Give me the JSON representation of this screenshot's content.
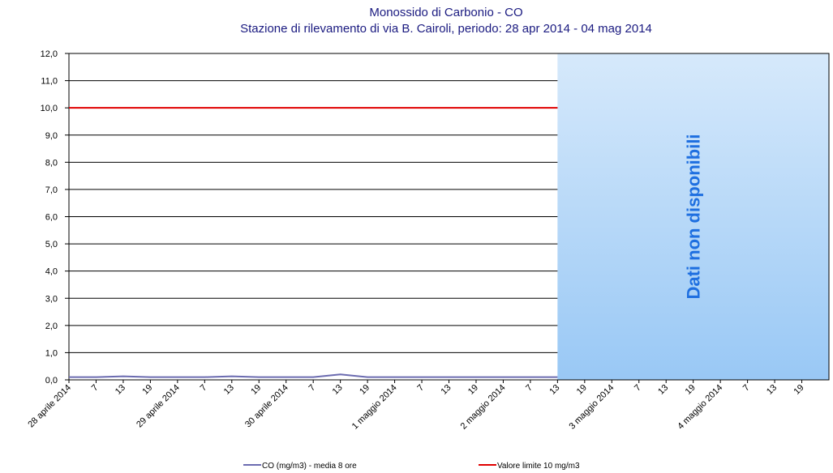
{
  "chart_data": {
    "type": "line",
    "title": "Monossido di Carbonio - CO",
    "subtitle": "Stazione di rilevamento di via B. Cairoli, periodo: 28 apr 2014 - 04 mag 2014",
    "annotation": "Dati non disponibili",
    "categories": [
      "28 aprile 2014",
      "7",
      "13",
      "19",
      "29 aprile 2014",
      "7",
      "13",
      "19",
      "30 aprile 2014",
      "7",
      "13",
      "19",
      "1 maggio 2014",
      "7",
      "13",
      "19",
      "2 maggio 2014",
      "7",
      "13",
      "19",
      "3 maggio 2014",
      "7",
      "13",
      "19",
      "4 maggio 2014",
      "7",
      "13",
      "19"
    ],
    "series": [
      {
        "name": "CO (mg/m3) - media 8 ore",
        "color": "#6b6bb0",
        "values": [
          0.1,
          0.1,
          0.13,
          0.1,
          0.1,
          0.1,
          0.13,
          0.1,
          0.1,
          0.1,
          0.2,
          0.1,
          0.1,
          0.1,
          0.1,
          0.1,
          0.1,
          0.1,
          0.1,
          null,
          null,
          null,
          null,
          null,
          null,
          null,
          null,
          null
        ]
      },
      {
        "name": "Valore limite 10 mg/m3",
        "color": "#e00000",
        "values": [
          10,
          10,
          10,
          10,
          10,
          10,
          10,
          10,
          10,
          10,
          10,
          10,
          10,
          10,
          10,
          10,
          10,
          10,
          10,
          null,
          null,
          null,
          null,
          null,
          null,
          null,
          null,
          null
        ]
      }
    ],
    "ylim": [
      0,
      12
    ],
    "yticks": [
      {
        "value": 0,
        "label": "0,0"
      },
      {
        "value": 1,
        "label": "1,0"
      },
      {
        "value": 2,
        "label": "2,0"
      },
      {
        "value": 3,
        "label": "3,0"
      },
      {
        "value": 4,
        "label": "4,0"
      },
      {
        "value": 5,
        "label": "5,0"
      },
      {
        "value": 6,
        "label": "6,0"
      },
      {
        "value": 7,
        "label": "7,0"
      },
      {
        "value": 8,
        "label": "8,0"
      },
      {
        "value": 9,
        "label": "9,0"
      },
      {
        "value": 10,
        "label": "10,0"
      },
      {
        "value": 11,
        "label": "11,0"
      },
      {
        "value": 12,
        "label": "12,0"
      }
    ],
    "grid": true
  }
}
